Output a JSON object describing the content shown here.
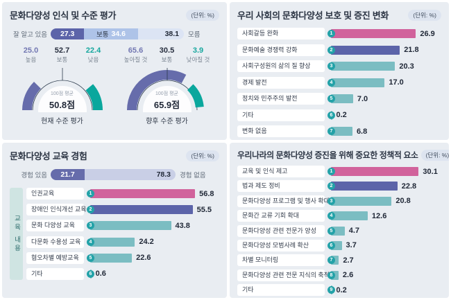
{
  "unit_label": "(단위: %)",
  "colors": {
    "pink": "#d1639c",
    "purple": "#5c64a9",
    "tealbar": "#7bbdc2",
    "circle": "#23a2a8",
    "gpurple": "#666cab",
    "gteal": "#0aa79d",
    "arc_line": "#2c3a4c",
    "seg_dark": "#5c64a9",
    "seg_mid": "#aec3e8",
    "seg_light": "#dce4f4",
    "seg_exp_dark": "#666cab",
    "seg_exp_light": "#c9cfe6",
    "sval_purple": "#7277b2",
    "sval_dark": "#272e3e",
    "sval_teal": "#16a79e"
  },
  "panel_awareness": {
    "title": "문화다양성 인식 및 수준 평가",
    "stacked_bar": {
      "left_label": "잘 알고 있음",
      "right_label": "모름",
      "segments": [
        {
          "value": "27.3",
          "bg": "seg_dark",
          "value_style": "light",
          "align": "center"
        },
        {
          "value": "34.6",
          "label": "보통",
          "bg": "seg_mid",
          "value_style": "light",
          "align": "center"
        },
        {
          "value": "38.1",
          "bg": "seg_light",
          "value_style": "dark",
          "align": "right"
        }
      ]
    },
    "gauges": [
      {
        "stats": [
          {
            "value": "25.0",
            "label": "높음",
            "color": "sval_purple"
          },
          {
            "value": "52.7",
            "label": "보통",
            "color": "sval_dark"
          },
          {
            "value": "22.4",
            "label": "낮음",
            "color": "sval_teal"
          }
        ],
        "center_top": "100점 평균",
        "center_value": "50.8점",
        "caption": "현재 수준 평가",
        "arcs": [
          {
            "color": "gpurple",
            "r": 51,
            "w": 14,
            "from": 0,
            "to": 25.0
          },
          {
            "color": "gteal",
            "r": 51,
            "w": 14,
            "from": 77.5,
            "to": 100
          }
        ]
      },
      {
        "stats": [
          {
            "value": "65.6",
            "label": "높아질 것",
            "color": "sval_purple"
          },
          {
            "value": "30.5",
            "label": "보통",
            "color": "sval_dark"
          },
          {
            "value": "3.9",
            "label": "낮아질 것",
            "color": "sval_teal"
          }
        ],
        "center_top": "100점 평균",
        "center_value": "65.9점",
        "caption": "향후 수준 평가",
        "arcs": [
          {
            "color": "gpurple",
            "r": 51,
            "w": 14,
            "from": 0,
            "to": 65.6
          },
          {
            "color": "gteal",
            "r": 47,
            "w": 12,
            "from": 75,
            "to": 97
          }
        ]
      }
    ]
  },
  "panel_change": {
    "title": "우리 사회의 문화다양성 보호 및 증진 변화",
    "bars": [
      {
        "num": 1,
        "label": "사회갈등 완화",
        "value": "26.9",
        "color": "pink"
      },
      {
        "num": 2,
        "label": "문화예술 경쟁력 강화",
        "value": "21.8",
        "color": "purple"
      },
      {
        "num": 3,
        "label": "사회구성원의 삶의 질 향상",
        "value": "20.3",
        "color": "tealbar"
      },
      {
        "num": 4,
        "label": "경제 발전",
        "value": "17.0",
        "color": "tealbar"
      },
      {
        "num": 5,
        "label": "정치와 민주주의 발전",
        "value": "7.0",
        "color": "tealbar"
      },
      {
        "num": 6,
        "label": "기타",
        "value": "0.2",
        "color": "tealbar"
      },
      {
        "num": 7,
        "label": "변화 없음",
        "value": "6.8",
        "color": "tealbar"
      }
    ]
  },
  "panel_education": {
    "title": "문화다양성 교육 경험",
    "stacked_bar": {
      "left_label": "경험 있음",
      "right_label": "경험 없음",
      "segments": [
        {
          "value": "21.7",
          "bg": "seg_exp_dark",
          "value_style": "light",
          "align": "center"
        },
        {
          "value": "78.3",
          "bg": "seg_exp_light",
          "value_style": "dark",
          "align": "right"
        }
      ]
    },
    "band_label": "교육 내용",
    "bars": [
      {
        "num": 1,
        "label": "인권교육",
        "value": "56.8",
        "color": "pink"
      },
      {
        "num": 2,
        "label": "장애인 인식개선 교육",
        "value": "55.5",
        "color": "purple"
      },
      {
        "num": 3,
        "label": "문화 다양성 교육",
        "value": "43.8",
        "color": "tealbar"
      },
      {
        "num": 4,
        "label": "다문화 수용성 교육",
        "value": "24.2",
        "color": "tealbar"
      },
      {
        "num": 5,
        "label": "혐오차별 예방교육",
        "value": "22.6",
        "color": "tealbar"
      },
      {
        "num": 6,
        "label": "기타",
        "value": "0.6",
        "color": "tealbar"
      }
    ]
  },
  "panel_policy": {
    "title": "우리나라의 문화다양성 증진을 위해 중요한 정책적 요소",
    "bars": [
      {
        "num": 1,
        "label": "교육 및 인식 제고",
        "value": "30.1",
        "color": "pink"
      },
      {
        "num": 2,
        "label": "법과 제도 정비",
        "value": "22.8",
        "color": "purple"
      },
      {
        "num": 3,
        "label": "문화다양성 프로그램 및 행사 확대",
        "value": "20.8",
        "color": "tealbar"
      },
      {
        "num": 4,
        "label": "문화간 교류 기회 확대",
        "value": "12.6",
        "color": "tealbar"
      },
      {
        "num": 5,
        "label": "문화다양성 관련 전문가 양성",
        "value": "4.7",
        "color": "tealbar"
      },
      {
        "num": 6,
        "label": "문화다양성 모범사례 확산",
        "value": "3.7",
        "color": "tealbar"
      },
      {
        "num": 7,
        "label": "차별 모니터링",
        "value": "2.7",
        "color": "tealbar"
      },
      {
        "num": 8,
        "label": "문화다양성 관련  전문 지식의 축적",
        "value": "2.6",
        "color": "tealbar"
      },
      {
        "num": 9,
        "label": "기타",
        "value": "0.2",
        "color": "tealbar"
      }
    ]
  },
  "chart_data": [
    {
      "type": "bar",
      "subtype": "stacked-horizontal",
      "title": "문화다양성 인식 및 수준 평가",
      "unit": "%",
      "categories": [
        "잘 알고 있음",
        "보통",
        "모름"
      ],
      "values": [
        27.3,
        34.6,
        38.1
      ]
    },
    {
      "type": "pie",
      "subtype": "semicircle-gauge",
      "title": "현재 수준 평가",
      "unit": "%",
      "categories": [
        "높음",
        "보통",
        "낮음"
      ],
      "values": [
        25.0,
        52.7,
        22.4
      ],
      "score_label": "100점 평균",
      "score": "50.8점"
    },
    {
      "type": "pie",
      "subtype": "semicircle-gauge",
      "title": "향후 수준 평가",
      "unit": "%",
      "categories": [
        "높아질 것",
        "보통",
        "낮아질 것"
      ],
      "values": [
        65.6,
        30.5,
        3.9
      ],
      "score_label": "100점 평균",
      "score": "65.9점"
    },
    {
      "type": "bar",
      "subtype": "horizontal",
      "title": "우리 사회의 문화다양성 보호 및 증진 변화",
      "unit": "%",
      "categories": [
        "사회갈등 완화",
        "문화예술 경쟁력 강화",
        "사회구성원의 삶의 질 향상",
        "경제 발전",
        "정치와 민주주의 발전",
        "기타",
        "변화 없음"
      ],
      "values": [
        26.9,
        21.8,
        20.3,
        17.0,
        7.0,
        0.2,
        6.8
      ]
    },
    {
      "type": "bar",
      "subtype": "stacked-horizontal",
      "title": "문화다양성 교육 경험",
      "unit": "%",
      "categories": [
        "경험 있음",
        "경험 없음"
      ],
      "values": [
        21.7,
        78.3
      ]
    },
    {
      "type": "bar",
      "subtype": "horizontal",
      "title": "문화다양성 교육 경험 - 교육 내용",
      "unit": "%",
      "categories": [
        "인권교육",
        "장애인 인식개선 교육",
        "문화 다양성 교육",
        "다문화 수용성 교육",
        "혐오차별 예방교육",
        "기타"
      ],
      "values": [
        56.8,
        55.5,
        43.8,
        24.2,
        22.6,
        0.6
      ]
    },
    {
      "type": "bar",
      "subtype": "horizontal",
      "title": "우리나라의 문화다양성 증진을 위해 중요한 정책적 요소",
      "unit": "%",
      "categories": [
        "교육 및 인식 제고",
        "법과 제도 정비",
        "문화다양성 프로그램 및 행사 확대",
        "문화간 교류 기회 확대",
        "문화다양성 관련 전문가 양성",
        "문화다양성 모범사례 확산",
        "차별 모니터링",
        "문화다양성 관련 전문 지식의 축적",
        "기타"
      ],
      "values": [
        30.1,
        22.8,
        20.8,
        12.6,
        4.7,
        3.7,
        2.7,
        2.6,
        0.2
      ]
    }
  ]
}
